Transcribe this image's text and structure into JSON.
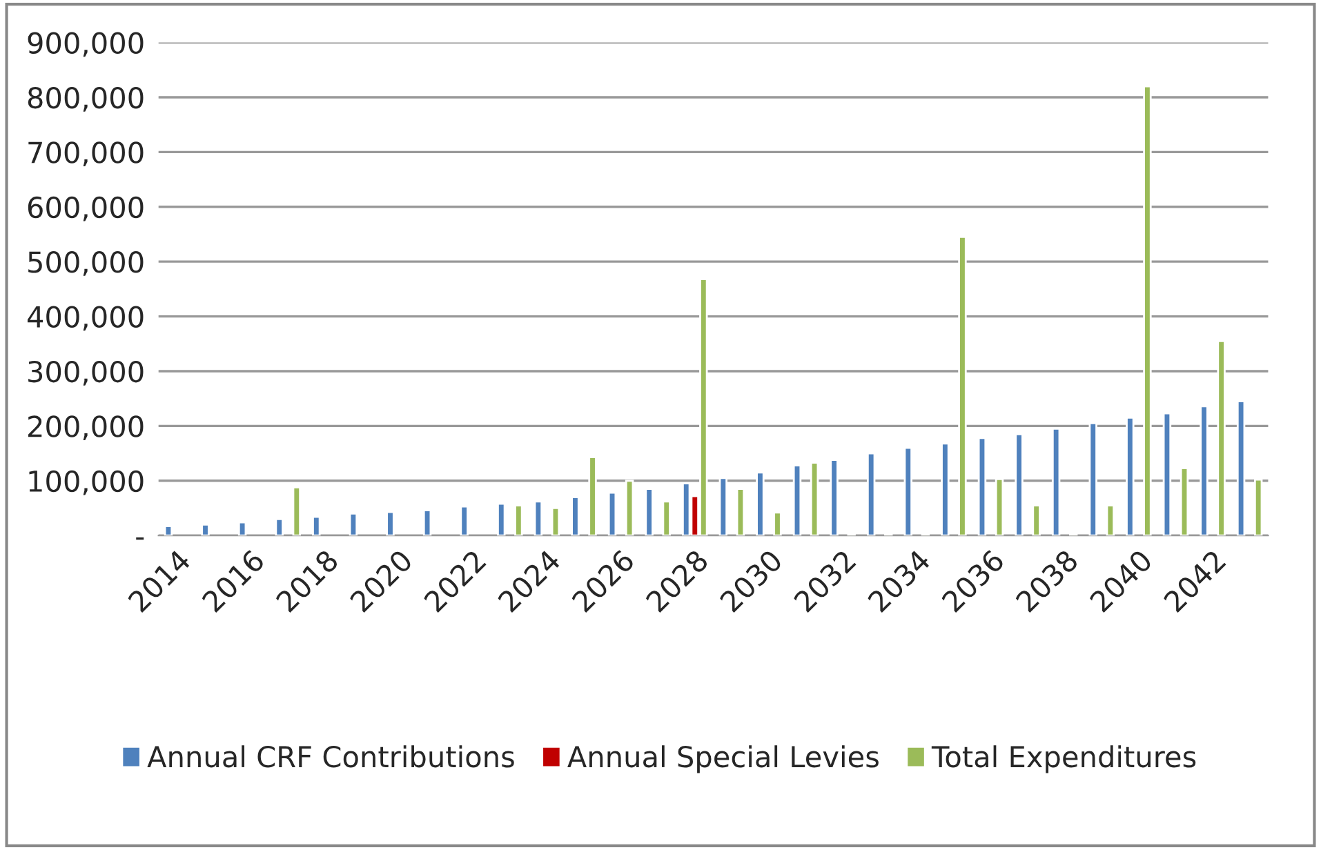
{
  "chart_data": {
    "type": "bar",
    "categories": [
      "2014",
      null,
      "2016",
      null,
      "2018",
      null,
      "2020",
      null,
      "2022",
      null,
      "2024",
      null,
      "2026",
      null,
      "2028",
      null,
      "2030",
      null,
      "2032",
      null,
      "2034",
      null,
      "2036",
      null,
      "2038",
      null,
      "2040",
      null,
      "2042",
      null
    ],
    "series": [
      {
        "name": "Annual CRF Contributions",
        "color": "#4f81bd",
        "values": [
          17000,
          20000,
          24000,
          30000,
          34000,
          40000,
          43000,
          46000,
          53000,
          58000,
          62000,
          70000,
          78000,
          85000,
          95000,
          105000,
          115000,
          128000,
          138000,
          150000,
          160000,
          168000,
          178000,
          185000,
          195000,
          205000,
          215000,
          223000,
          236000,
          245000
        ]
      },
      {
        "name": "Annual Special Levies",
        "color": "#c00000",
        "values": [
          null,
          null,
          null,
          null,
          null,
          null,
          null,
          null,
          null,
          null,
          null,
          null,
          null,
          null,
          72000,
          null,
          null,
          null,
          null,
          null,
          null,
          null,
          null,
          null,
          null,
          null,
          null,
          null,
          null,
          null
        ]
      },
      {
        "name": "Total Expenditures",
        "color": "#9bbb59",
        "values": [
          null,
          null,
          null,
          88000,
          null,
          null,
          null,
          null,
          null,
          55000,
          50000,
          143000,
          100000,
          62000,
          468000,
          85000,
          42000,
          133000,
          2000,
          2000,
          2000,
          545000,
          103000,
          55000,
          2000,
          55000,
          820000,
          123000,
          355000,
          102000
        ]
      }
    ],
    "ylim": [
      0,
      900000
    ],
    "yticks": [
      {
        "value": 0,
        "label": "-"
      },
      {
        "value": 100000,
        "label": "100,000"
      },
      {
        "value": 200000,
        "label": "200,000"
      },
      {
        "value": 300000,
        "label": "300,000"
      },
      {
        "value": 400000,
        "label": "400,000"
      },
      {
        "value": 500000,
        "label": "500,000"
      },
      {
        "value": 600000,
        "label": "600,000"
      },
      {
        "value": 700000,
        "label": "700,000"
      },
      {
        "value": 800000,
        "label": "800,000"
      },
      {
        "value": 900000,
        "label": "900,000"
      }
    ],
    "grid": "y",
    "legend": "bottom"
  }
}
